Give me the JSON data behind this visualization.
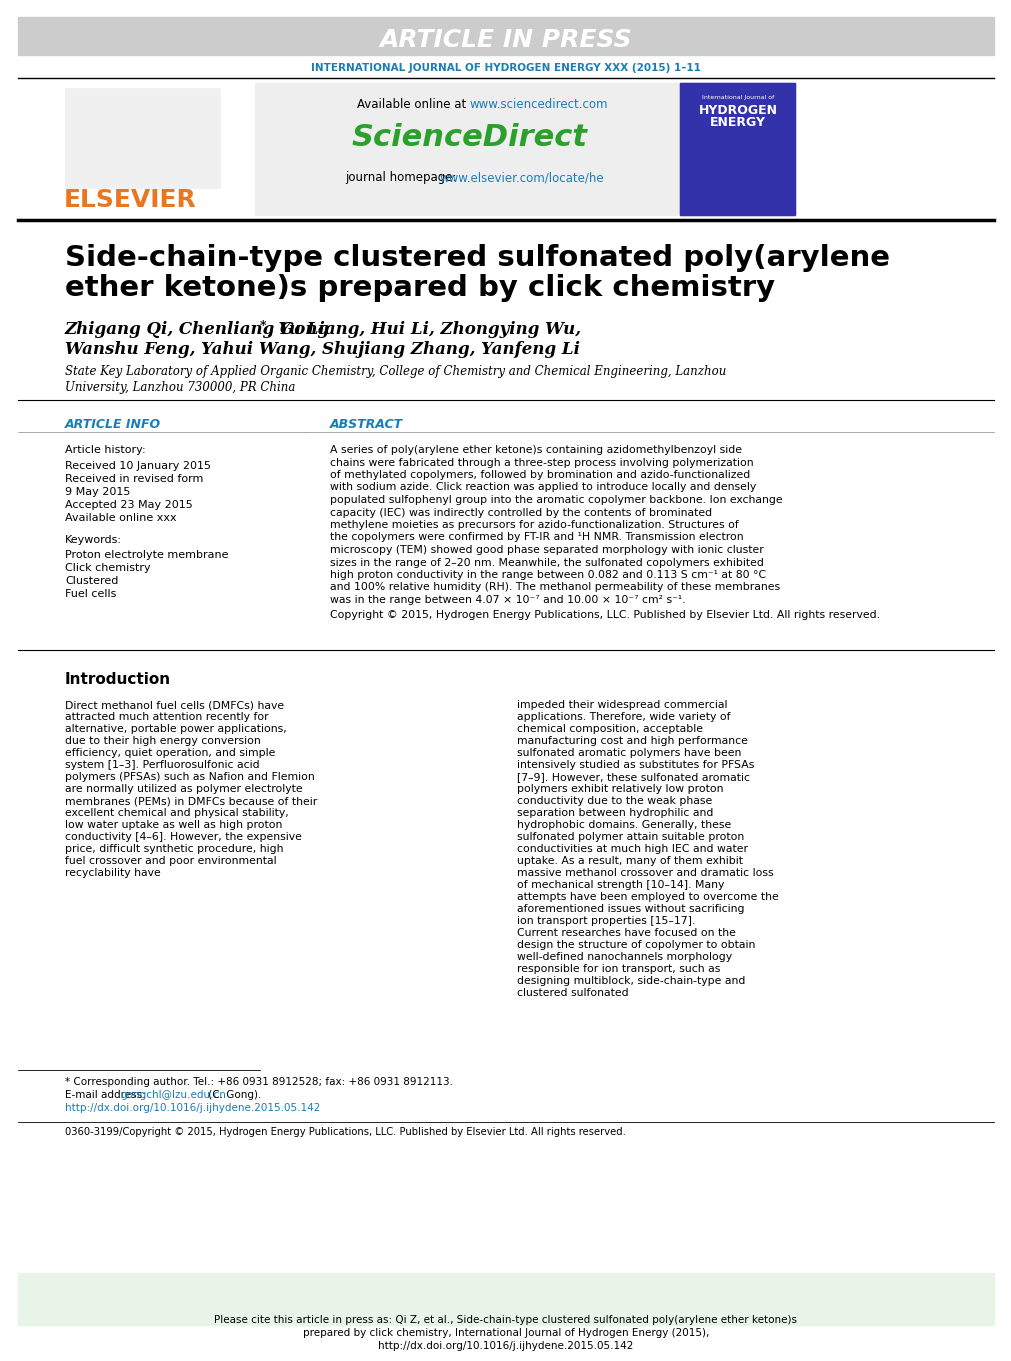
{
  "article_in_press": "ARTICLE IN PRESS",
  "journal_line": "INTERNATIONAL JOURNAL OF HYDROGEN ENERGY XXX (2015) 1–11",
  "available_online": "Available online at ",
  "sciencedirect_url": "www.sciencedirect.com",
  "sciencedirect_text": "ScienceDirect",
  "journal_homepage": "journal homepage: ",
  "elsevier_url": "www.elsevier.com/locate/he",
  "elsevier_text": "ELSEVIER",
  "title_line1": "Side-chain-type clustered sulfonated poly(arylene",
  "title_line2": "ether ketone)s prepared by click chemistry",
  "authors_line1": "Zhigang Qi, Chenliang Gong",
  "authors_asterisk": "*",
  "authors_line1b": ", Yu Liang, Hui Li, Zhongying Wu,",
  "authors_line2": "Wanshu Feng, Yahui Wang, Shujiang Zhang, Yanfeng Li",
  "affiliation1": "State Key Laboratory of Applied Organic Chemistry, College of Chemistry and Chemical Engineering, Lanzhou",
  "affiliation2": "University, Lanzhou 730000, PR China",
  "article_info_header": "ARTICLE INFO",
  "abstract_header": "ABSTRACT",
  "article_history": "Article history:",
  "received": "Received 10 January 2015",
  "received_revised": "Received in revised form",
  "revised_date": "9 May 2015",
  "accepted": "Accepted 23 May 2015",
  "available_online2": "Available online xxx",
  "keywords_header": "Keywords:",
  "keyword1": "Proton electrolyte membrane",
  "keyword2": "Click chemistry",
  "keyword3": "Clustered",
  "keyword4": "Fuel cells",
  "abstract_text": "A series of poly(arylene ether ketone)s containing azidomethylbenzoyl side chains were fabricated through a three-step process involving polymerization of methylated copolymers, followed by bromination and azido-functionalized with sodium azide. Click reaction was applied to introduce locally and densely populated sulfophenyl group into the aromatic copolymer backbone. Ion exchange capacity (IEC) was indirectly controlled by the contents of brominated methylene moieties as precursors for azido-functionalization. Structures of the copolymers were confirmed by FT-IR and ¹H NMR. Transmission electron microscopy (TEM) showed good phase separated morphology with ionic cluster sizes in the range of 2–20 nm. Meanwhile, the sulfonated copolymers exhibited high proton conductivity in the range between 0.082 and 0.113 S cm⁻¹ at 80 °C and 100% relative humidity (RH). The methanol permeability of these membranes was in the range between 4.07 × 10⁻⁷ and 10.00 × 10⁻⁷ cm² s⁻¹.",
  "copyright_abstract": "Copyright © 2015, Hydrogen Energy Publications, LLC. Published by Elsevier Ltd. All rights reserved.",
  "intro_header": "Introduction",
  "intro_text_col1": "Direct methanol fuel cells (DMFCs) have attracted much attention recently for alternative, portable power applications, due to their high energy conversion efficiency, quiet operation, and simple system [1–3]. Perfluorosulfonic acid polymers (PFSAs) such as Nafion and Flemion are normally utilized as polymer electrolyte membranes (PEMs) in DMFCs because of their excellent chemical and physical stability, low water uptake as well as high proton conductivity [4–6]. However, the expensive price, difficult synthetic procedure, high fuel crossover and poor environmental recyclability have",
  "intro_text_col2": "impeded their widespread commercial applications. Therefore, wide variety of chemical composition, acceptable manufacturing cost and high performance sulfonated aromatic polymers have been intensively studied as substitutes for PFSAs [7–9]. However, these sulfonated aromatic polymers exhibit relatively low proton conductivity due to the weak phase separation between hydrophilic and hydrophobic domains. Generally, these sulfonated polymer attain suitable proton conductivities at much high IEC and water uptake. As a result, many of them exhibit massive methanol crossover and dramatic loss of mechanical strength [10–14]. Many attempts have been employed to overcome the aforementioned issues without sacrificing ion transport properties [15–17].\n    Current researches have focused on the design the structure of copolymer to obtain well-defined nanochannels morphology responsible for ion transport, such as designing multiblock, side-chain-type and clustered sulfonated",
  "footnote_corresponding": "* Corresponding author. Tel.: +86 0931 8912528; fax: +86 0931 8912113.",
  "footnote_email_label": "E-mail address: ",
  "footnote_email": "gongchl@lzu.edu.cn",
  "footnote_email2": " (C. Gong).",
  "footnote_doi": "http://dx.doi.org/10.1016/j.ijhydene.2015.05.142",
  "footer_issn": "0360-3199/Copyright © 2015, Hydrogen Energy Publications, LLC. Published by Elsevier Ltd. All rights reserved.",
  "cite_box": "Please cite this article in press as: Qi Z, et al., Side-chain-type clustered sulfonated poly(arylene ether ketone)s prepared by click chemistry, International Journal of Hydrogen Energy (2015), http://dx.doi.org/10.1016/j.ijhydene.2015.05.142",
  "bg_color": "#ffffff",
  "header_bg": "#cccccc",
  "journal_color": "#1a7db5",
  "sciencedirect_color": "#2ca02c",
  "elsevier_color": "#e87722",
  "title_color": "#000000",
  "authors_color": "#000000",
  "link_color": "#1a7db5",
  "section_header_color": "#1a7db5",
  "cite_box_bg": "#e8f4e8",
  "cite_box_border": "#4a9a4a"
}
